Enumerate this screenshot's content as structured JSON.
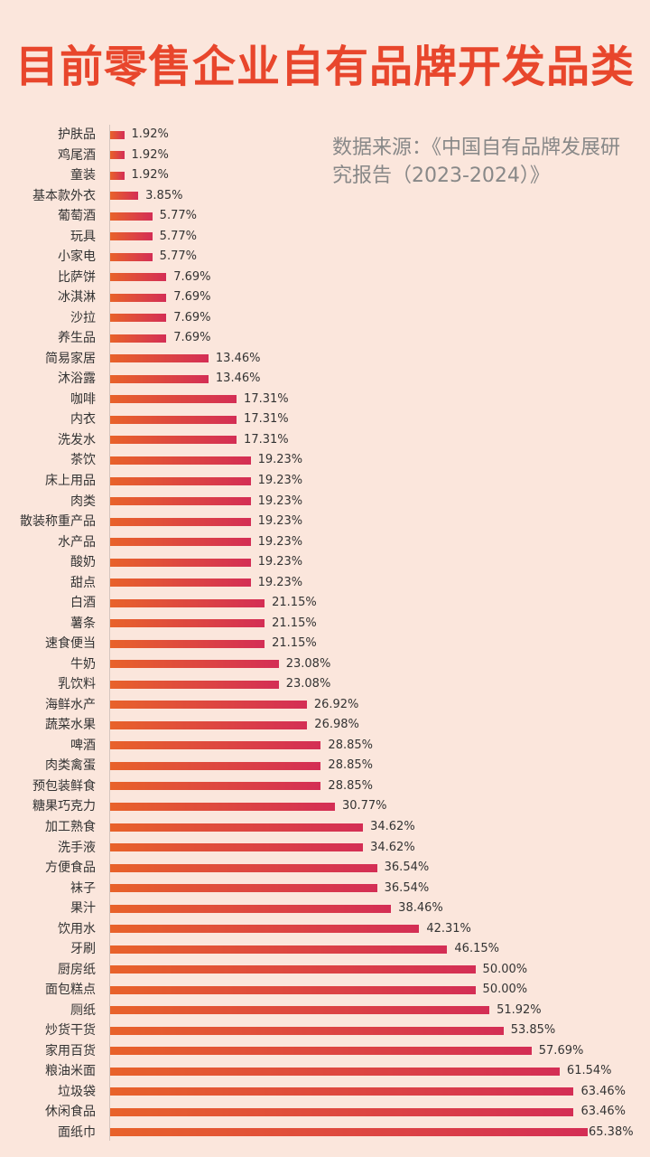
{
  "chart_data": {
    "type": "bar",
    "orientation": "horizontal",
    "title": "目前零售企业自有品牌开发品类",
    "annotation": "数据来源：《中国自有品牌发展研究报告（2023-2024）》",
    "colors": {
      "bar_start": "#e8622a",
      "bar_end": "#d42e55",
      "title": "#e8462c"
    },
    "xlim": [
      0,
      65.38
    ],
    "categories": [
      "护肤品",
      "鸡尾酒",
      "童装",
      "基本款外衣",
      "葡萄酒",
      "玩具",
      "小家电",
      "比萨饼",
      "冰淇淋",
      "沙拉",
      "养生品",
      "简易家居",
      "沐浴露",
      "咖啡",
      "内衣",
      "洗发水",
      "茶饮",
      "床上用品",
      "肉类",
      "散装称重产品",
      "水产品",
      "酸奶",
      "甜点",
      "白酒",
      "薯条",
      "速食便当",
      "牛奶",
      "乳饮料",
      "海鲜水产",
      "蔬菜水果",
      "啤酒",
      "肉类禽蛋",
      "预包装鲜食",
      "糖果巧克力",
      "加工熟食",
      "洗手液",
      "方便食品",
      "袜子",
      "果汁",
      "饮用水",
      "牙刷",
      "厨房纸",
      "面包糕点",
      "厕纸",
      "炒货干货",
      "家用百货",
      "粮油米面",
      "垃圾袋",
      "休闲食品",
      "面纸巾"
    ],
    "values": [
      1.92,
      1.92,
      1.92,
      3.85,
      5.77,
      5.77,
      5.77,
      7.69,
      7.69,
      7.69,
      7.69,
      13.46,
      13.46,
      17.31,
      17.31,
      17.31,
      19.23,
      19.23,
      19.23,
      19.23,
      19.23,
      19.23,
      19.23,
      21.15,
      21.15,
      21.15,
      23.08,
      23.08,
      26.92,
      26.98,
      28.85,
      28.85,
      28.85,
      30.77,
      34.62,
      34.62,
      36.54,
      36.54,
      38.46,
      42.31,
      46.15,
      50.0,
      50.0,
      51.92,
      53.85,
      57.69,
      61.54,
      63.46,
      63.46,
      65.38
    ],
    "value_labels": [
      "1.92%",
      "1.92%",
      "1.92%",
      "3.85%",
      "5.77%",
      "5.77%",
      "5.77%",
      "7.69%",
      "7.69%",
      "7.69%",
      "7.69%",
      "13.46%",
      "13.46%",
      "17.31%",
      "17.31%",
      "17.31%",
      "19.23%",
      "19.23%",
      "19.23%",
      "19.23%",
      "19.23%",
      "19.23%",
      "19.23%",
      "21.15%",
      "21.15%",
      "21.15%",
      "23.08%",
      "23.08%",
      "26.92%",
      "26.98%",
      "28.85%",
      "28.85%",
      "28.85%",
      "30.77%",
      "34.62%",
      "34.62%",
      "36.54%",
      "36.54%",
      "38.46%",
      "42.31%",
      "46.15%",
      "50.00%",
      "50.00%",
      "51.92%",
      "53.85%",
      "57.69%",
      "61.54%",
      "63.46%",
      "63.46%",
      "65.38%"
    ]
  }
}
